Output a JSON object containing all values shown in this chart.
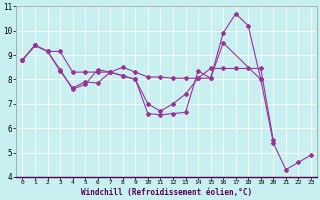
{
  "xlabel": "Windchill (Refroidissement éolien,°C)",
  "background_color": "#c8f0f0",
  "line_color": "#993399",
  "grid_color": "#aadddd",
  "xlim": [
    -0.5,
    23.5
  ],
  "ylim": [
    4,
    11
  ],
  "yticks": [
    4,
    5,
    6,
    7,
    8,
    9,
    10,
    11
  ],
  "xticks": [
    0,
    1,
    2,
    3,
    4,
    5,
    6,
    7,
    8,
    9,
    10,
    11,
    12,
    13,
    14,
    15,
    16,
    17,
    18,
    19,
    20,
    21,
    22,
    23
  ],
  "series1_x": [
    0,
    1,
    2,
    3,
    4,
    5,
    6,
    7,
    8,
    9,
    10,
    11,
    12,
    13,
    14,
    15,
    16,
    17,
    18,
    19,
    20,
    21,
    22,
    23
  ],
  "series1_y": [
    8.8,
    9.4,
    9.15,
    8.4,
    7.6,
    7.8,
    8.4,
    8.3,
    8.15,
    8.0,
    6.6,
    6.55,
    6.6,
    6.65,
    8.35,
    8.05,
    9.9,
    10.7,
    10.2,
    8.0,
    5.4,
    4.3,
    4.6,
    4.9
  ],
  "series2_x": [
    0,
    1,
    2,
    3,
    4,
    5,
    6,
    7,
    8,
    9,
    10,
    11,
    12,
    13,
    14,
    15,
    16,
    19
  ],
  "series2_y": [
    8.8,
    9.4,
    9.15,
    8.35,
    7.65,
    7.9,
    7.85,
    8.3,
    8.15,
    8.0,
    7.0,
    6.7,
    7.0,
    7.4,
    8.05,
    8.05,
    9.5,
    8.0
  ],
  "series3_x": [
    0,
    1,
    2,
    3,
    4,
    5,
    6,
    7,
    8,
    9,
    10,
    11,
    12,
    13,
    14,
    15,
    16,
    17,
    18,
    19,
    20
  ],
  "series3_y": [
    8.8,
    9.4,
    9.15,
    9.15,
    8.3,
    8.3,
    8.3,
    8.3,
    8.5,
    8.3,
    8.1,
    8.1,
    8.05,
    8.05,
    8.05,
    8.45,
    8.45,
    8.45,
    8.45,
    8.45,
    5.5
  ]
}
